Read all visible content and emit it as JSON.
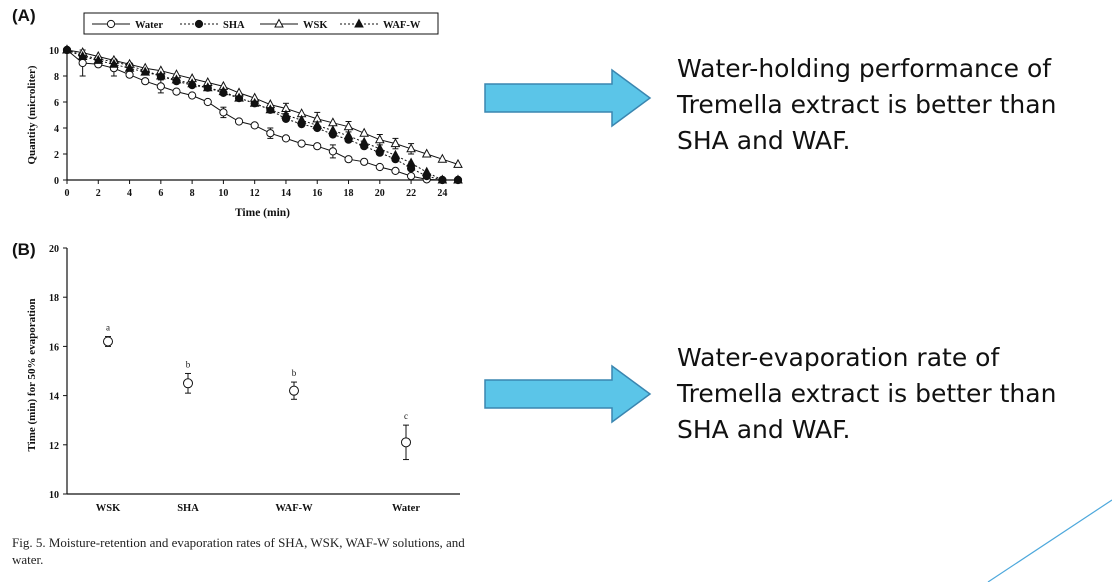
{
  "panels": {
    "a_label": "(A)",
    "b_label": "(B)"
  },
  "caption": "Fig. 5.  Moisture-retention and evaporation rates of SHA, WSK, WAF-W solutions, and water.",
  "text_blocks": [
    "Water-holding performance of Tremella extract is better than SHA and WAF.",
    "Water-evaporation rate of Tremella extract is better than SHA and WAF."
  ],
  "colors": {
    "arrow_fill": "#5bc5e8",
    "arrow_stroke": "#3a86b0",
    "deco_line": "#4da8dc",
    "ink": "#111111"
  },
  "chart_data": [
    {
      "type": "line",
      "xlabel": "Time (min)",
      "ylabel": "Quantity (microliter)",
      "xlim": [
        0,
        25
      ],
      "ylim": [
        0,
        10
      ],
      "xticks": [
        0,
        2,
        4,
        6,
        8,
        10,
        12,
        14,
        16,
        18,
        20,
        22,
        24
      ],
      "yticks": [
        0,
        2,
        4,
        6,
        8,
        10
      ],
      "legend_position": "top",
      "x": [
        0,
        1,
        2,
        3,
        4,
        5,
        6,
        7,
        8,
        9,
        10,
        11,
        12,
        13,
        14,
        15,
        16,
        17,
        18,
        19,
        20,
        21,
        22,
        23,
        24,
        25
      ],
      "series": [
        {
          "name": "Water",
          "marker": "open-circle",
          "line": "solid",
          "values": [
            10,
            9.0,
            8.9,
            8.6,
            8.1,
            7.6,
            7.2,
            6.8,
            6.5,
            6.0,
            5.2,
            4.5,
            4.2,
            3.6,
            3.2,
            2.8,
            2.6,
            2.2,
            1.6,
            1.4,
            1.0,
            0.7,
            0.3,
            0.05,
            0,
            0
          ]
        },
        {
          "name": "SHA",
          "marker": "filled-circle",
          "line": "dotted",
          "values": [
            10,
            9.6,
            9.3,
            9.1,
            8.8,
            8.4,
            8.0,
            7.6,
            7.3,
            7.1,
            6.7,
            6.3,
            5.9,
            5.4,
            4.7,
            4.3,
            4.0,
            3.5,
            3.1,
            2.6,
            2.1,
            1.6,
            0.9,
            0.3,
            0,
            0
          ]
        },
        {
          "name": "WSK",
          "marker": "open-triangle",
          "line": "solid",
          "values": [
            10,
            9.8,
            9.5,
            9.2,
            8.9,
            8.6,
            8.4,
            8.1,
            7.8,
            7.5,
            7.2,
            6.7,
            6.3,
            5.8,
            5.5,
            5.1,
            4.7,
            4.4,
            4.1,
            3.6,
            3.1,
            2.8,
            2.4,
            2.0,
            1.6,
            1.2
          ]
        },
        {
          "name": "WAF-W",
          "marker": "filled-triangle",
          "line": "dotted",
          "values": [
            10,
            9.5,
            9.2,
            8.9,
            8.6,
            8.3,
            8.0,
            7.7,
            7.4,
            7.1,
            6.8,
            6.3,
            5.9,
            5.4,
            5.0,
            4.6,
            4.2,
            3.8,
            3.4,
            2.9,
            2.4,
            1.9,
            1.3,
            0.6,
            0,
            0
          ]
        }
      ],
      "error_bars": {
        "Water": [
          0,
          1.0,
          0,
          0.6,
          0,
          0,
          0.5,
          0,
          0,
          0,
          0.4,
          0,
          0,
          0.4,
          0,
          0,
          0,
          0.5,
          0,
          0,
          0,
          0,
          0,
          0,
          0,
          0
        ],
        "WSK": [
          0,
          0,
          0,
          0,
          0,
          0,
          0,
          0,
          0,
          0,
          0,
          0,
          0,
          0,
          0.4,
          0,
          0.5,
          0,
          0.4,
          0,
          0.4,
          0.4,
          0.4,
          0,
          0,
          0
        ]
      }
    },
    {
      "type": "scatter",
      "xlabel": "",
      "ylabel": "Time (min) for 50% evaporation",
      "categories": [
        "WSK",
        "SHA",
        "WAF-W",
        "Water"
      ],
      "values": [
        16.2,
        14.5,
        14.2,
        12.1
      ],
      "errors": [
        0.2,
        0.4,
        0.35,
        0.7
      ],
      "significance": [
        "a",
        "b",
        "b",
        "c"
      ],
      "ylim": [
        10,
        20
      ],
      "yticks": [
        10,
        12,
        14,
        16,
        18,
        20
      ]
    }
  ]
}
